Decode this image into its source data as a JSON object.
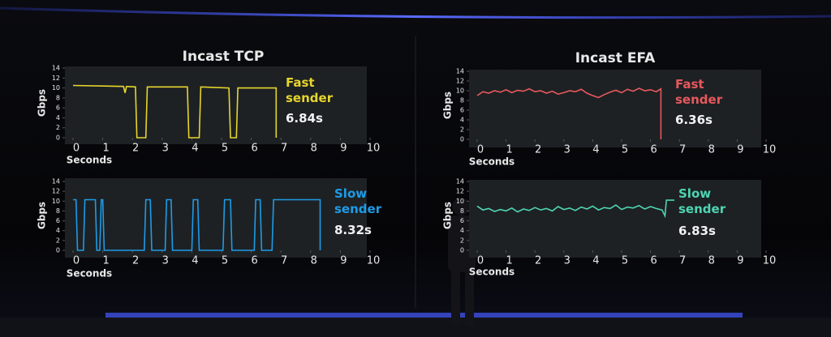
{
  "chart_data": [
    {
      "type": "line",
      "title": "Incast TCP",
      "y_label": "Gbps",
      "x_label": "Seconds",
      "annotation": "6.84s",
      "xlim": [
        0,
        10
      ],
      "xticks": [
        0,
        1,
        2,
        3,
        4,
        5,
        6,
        7,
        8,
        9,
        10
      ],
      "ylim": [
        0,
        14
      ],
      "yticks": [
        0,
        2,
        4,
        6,
        8,
        10,
        12,
        14
      ],
      "x": [
        0,
        1.7,
        1.75,
        1.8,
        2.1,
        2.15,
        2.45,
        2.5,
        3.85,
        3.9,
        4.25,
        4.3,
        5.25,
        5.3,
        5.5,
        5.55,
        6.84,
        6.84
      ],
      "series": [
        {
          "name": "Fast sender",
          "color": "#e6d52c",
          "values": [
            10.5,
            10.3,
            9.0,
            10.3,
            10.2,
            0,
            0,
            10.2,
            10.2,
            0,
            0,
            10.2,
            10.0,
            0,
            0,
            10.0,
            10.0,
            0
          ]
        }
      ]
    },
    {
      "type": "line",
      "title": "Incast EFA",
      "y_label": "Gbps",
      "x_label": "Seconds",
      "annotation": "6.36s",
      "xlim": [
        0,
        10
      ],
      "xticks": [
        0,
        1,
        2,
        3,
        4,
        5,
        6,
        7,
        8,
        9,
        10
      ],
      "ylim": [
        0,
        14
      ],
      "yticks": [
        0,
        2,
        4,
        6,
        8,
        10,
        12,
        14
      ],
      "x": [
        0,
        0.2,
        0.4,
        0.6,
        0.8,
        1,
        1.2,
        1.4,
        1.6,
        1.8,
        2,
        2.2,
        2.4,
        2.6,
        2.8,
        3,
        3.2,
        3.4,
        3.6,
        3.8,
        4,
        4.2,
        4.4,
        4.6,
        4.8,
        5,
        5.2,
        5.4,
        5.6,
        5.8,
        6,
        6.2,
        6.36,
        6.36
      ],
      "series": [
        {
          "name": "Fast sender",
          "color": "#e8585c",
          "values": [
            9.0,
            9.8,
            9.5,
            10.0,
            9.7,
            10.2,
            9.6,
            10.1,
            9.9,
            10.4,
            9.8,
            10.0,
            9.5,
            9.9,
            9.3,
            9.6,
            10.0,
            9.8,
            10.3,
            9.5,
            9.0,
            8.6,
            9.2,
            9.7,
            10.1,
            9.6,
            10.3,
            9.9,
            10.5,
            10.0,
            10.2,
            9.8,
            10.4,
            0
          ]
        }
      ]
    },
    {
      "type": "line",
      "y_label": "Gbps",
      "x_label": "Seconds",
      "annotation": "8.32s",
      "xlim": [
        0,
        10
      ],
      "xticks": [
        0,
        1,
        2,
        3,
        4,
        5,
        6,
        7,
        8,
        9,
        10
      ],
      "ylim": [
        0,
        14
      ],
      "yticks": [
        0,
        2,
        4,
        6,
        8,
        10,
        12,
        14
      ],
      "x": [
        0,
        0.1,
        0.15,
        0.35,
        0.4,
        0.75,
        0.8,
        0.9,
        0.95,
        1.0,
        1.05,
        2.4,
        2.45,
        2.6,
        2.65,
        3.1,
        3.15,
        3.3,
        3.35,
        4.0,
        4.05,
        4.2,
        4.25,
        5.05,
        5.1,
        5.3,
        5.35,
        6.1,
        6.15,
        6.3,
        6.35,
        6.7,
        6.75,
        8.32,
        8.32
      ],
      "series": [
        {
          "name": "Slow sender",
          "color": "#1e9be6",
          "values": [
            10.3,
            10.3,
            0,
            0,
            10.3,
            10.3,
            0,
            0,
            10.3,
            10.3,
            0,
            0,
            10.3,
            10.3,
            0,
            0,
            10.3,
            10.3,
            0,
            0,
            10.3,
            10.3,
            0,
            0,
            10.3,
            10.3,
            0,
            0,
            10.3,
            10.3,
            0,
            0,
            10.3,
            10.3,
            0
          ]
        }
      ]
    },
    {
      "type": "line",
      "y_label": "Gbps",
      "x_label": "Seconds",
      "annotation": "6.83s",
      "xlim": [
        0,
        10
      ],
      "xticks": [
        0,
        1,
        2,
        3,
        4,
        5,
        6,
        7,
        8,
        9,
        10
      ],
      "ylim": [
        0,
        14
      ],
      "yticks": [
        0,
        2,
        4,
        6,
        8,
        10,
        12,
        14
      ],
      "x": [
        0,
        0.2,
        0.4,
        0.6,
        0.8,
        1,
        1.2,
        1.4,
        1.6,
        1.8,
        2,
        2.2,
        2.4,
        2.6,
        2.8,
        3,
        3.2,
        3.4,
        3.6,
        3.8,
        4,
        4.2,
        4.4,
        4.6,
        4.8,
        5,
        5.2,
        5.4,
        5.6,
        5.8,
        6,
        6.2,
        6.4,
        6.5,
        6.55,
        6.83
      ],
      "series": [
        {
          "name": "Slow sender",
          "color": "#4fd4b2",
          "values": [
            9.0,
            8.2,
            8.5,
            7.9,
            8.3,
            8.0,
            8.6,
            7.8,
            8.4,
            8.1,
            8.7,
            8.2,
            8.5,
            8.0,
            8.9,
            8.3,
            8.6,
            8.1,
            8.8,
            8.4,
            9.0,
            8.2,
            8.7,
            8.5,
            9.2,
            8.3,
            8.8,
            8.6,
            9.1,
            8.4,
            8.9,
            8.5,
            8.2,
            7.0,
            10.2,
            10.2
          ]
        }
      ]
    }
  ]
}
